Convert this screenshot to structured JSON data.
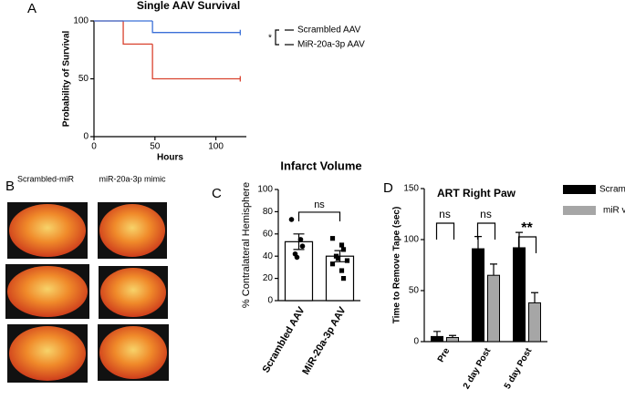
{
  "panel_labels": [
    "A",
    "B",
    "C",
    "D"
  ],
  "images": {
    "columns": [
      "Scrambled-miR",
      "miR-20a-3p mimic"
    ]
  },
  "chart_data": [
    {
      "type": "step",
      "title": "Single AAV Survival",
      "x_label": "Hours",
      "y_label": "Probability of Survival",
      "xlim": [
        0,
        125
      ],
      "ylim": [
        0,
        100
      ],
      "xticks": [
        0,
        50,
        100
      ],
      "yticks": [
        0,
        50,
        100
      ],
      "series": [
        {
          "name": "Scrambled AAV",
          "color": "#d9432f",
          "x": [
            0,
            24,
            48,
            120
          ],
          "values": [
            100,
            80,
            50,
            50
          ]
        },
        {
          "name": "MiR-20a-3p AAV",
          "color": "#3a6fd8",
          "x": [
            0,
            48,
            120
          ],
          "values": [
            100,
            90,
            90
          ]
        }
      ],
      "annotation": "*"
    },
    {
      "type": "bar_scatter",
      "title": "Infarct Volume",
      "y_label": "% Contralateral Hemisphere",
      "categories": [
        "Scrambled AAV",
        "MiR-20a-3p AAV"
      ],
      "values": [
        53,
        40
      ],
      "errors": [
        7,
        5
      ],
      "points": [
        [
          73,
          55,
          49,
          42,
          39
        ],
        [
          56,
          50,
          46,
          40,
          38,
          36,
          33,
          27,
          20
        ]
      ],
      "ylim": [
        0,
        100
      ],
      "yticks": [
        0,
        20,
        40,
        60,
        80,
        100
      ],
      "color": "#ffffff",
      "annotation": "ns"
    },
    {
      "type": "grouped_bar",
      "title": "ART Right Paw",
      "y_label": "Time to Remove Tape (sec)",
      "categories": [
        "Pre",
        "2 day Post",
        "5 day Post"
      ],
      "series": [
        {
          "name": "Scrambled",
          "color": "#000000",
          "values": [
            5,
            91,
            92
          ],
          "errors": [
            5,
            12,
            15
          ]
        },
        {
          "name": "miR vector",
          "color": "#a6a6a6",
          "values": [
            4,
            65,
            38
          ],
          "errors": [
            2,
            11,
            10
          ]
        }
      ],
      "ylim": [
        0,
        150
      ],
      "yticks": [
        0,
        50,
        100,
        150
      ],
      "annotations": [
        "ns",
        "ns",
        "**"
      ]
    }
  ]
}
